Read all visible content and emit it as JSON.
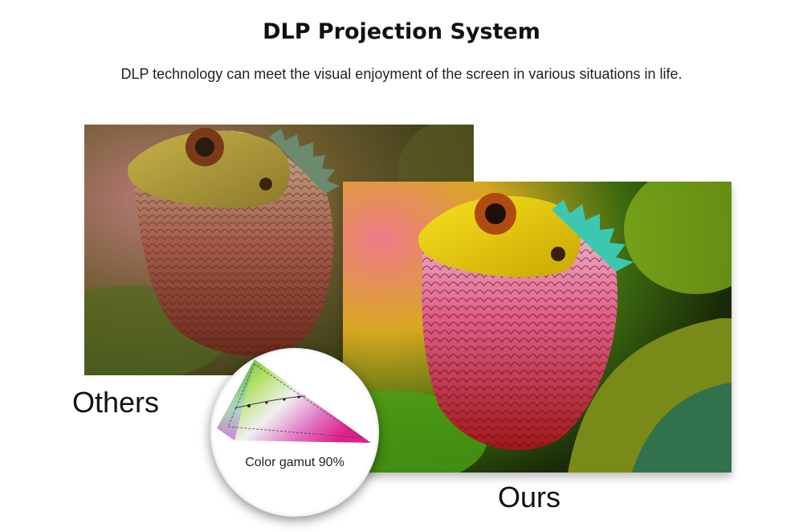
{
  "header": {
    "title": "DLP Projection System",
    "subtitle": "DLP technology can meet the visual enjoyment of the screen in various situations in life."
  },
  "comparison": {
    "left_label": "Others",
    "right_label": "Ours"
  },
  "gamut": {
    "label": "Color gamut 90%"
  },
  "colors": {
    "background": "#ffffff",
    "text": "#111111"
  }
}
